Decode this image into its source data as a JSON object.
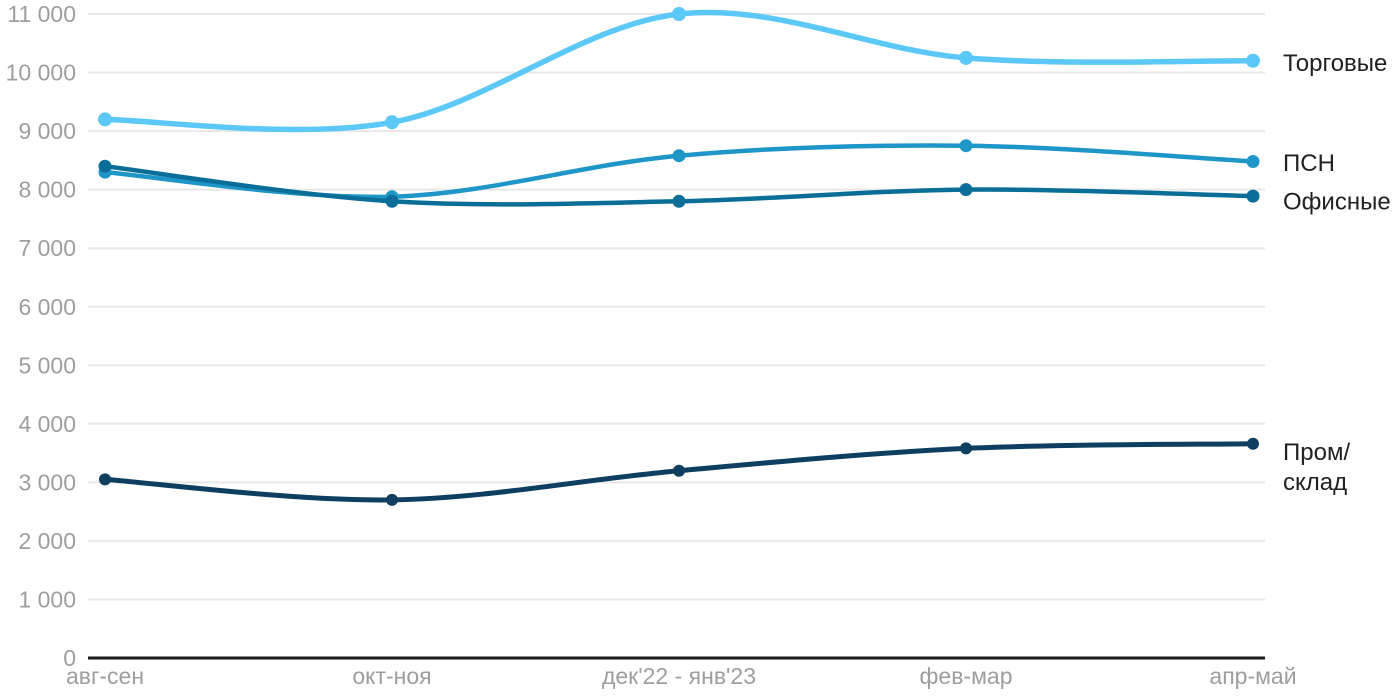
{
  "chart_data": {
    "type": "line",
    "title": "",
    "xlabel": "",
    "ylabel": "",
    "categories": [
      "авг-сен",
      "окт-ноя",
      "дек'22 - янв'23",
      "фев-мар",
      "апр-май"
    ],
    "series": [
      {
        "name": "Торговые",
        "label_lines": [
          "Торговые"
        ],
        "color": "#5BC8F7",
        "values": [
          9200,
          9150,
          11000,
          10250,
          10200
        ]
      },
      {
        "name": "ПСН",
        "label_lines": [
          "ПСН"
        ],
        "color": "#1E96C8",
        "values": [
          8300,
          7880,
          8580,
          8750,
          8480
        ]
      },
      {
        "name": "Офисные",
        "label_lines": [
          "Офисные"
        ],
        "color": "#0B6E99",
        "values": [
          8400,
          7800,
          7800,
          8000,
          7890
        ]
      },
      {
        "name": "Пром/склад",
        "label_lines": [
          "Пром/",
          "склад"
        ],
        "color": "#0E3E60",
        "values": [
          3050,
          2700,
          3200,
          3580,
          3660
        ]
      }
    ],
    "y_ticks": [
      {
        "value": 0,
        "label": "0"
      },
      {
        "value": 1000,
        "label": "1 000"
      },
      {
        "value": 2000,
        "label": "2 000"
      },
      {
        "value": 3000,
        "label": "3 000"
      },
      {
        "value": 4000,
        "label": "4 000"
      },
      {
        "value": 5000,
        "label": "5 000"
      },
      {
        "value": 6000,
        "label": "6 000"
      },
      {
        "value": 7000,
        "label": "7 000"
      },
      {
        "value": 8000,
        "label": "8 000"
      },
      {
        "value": 9000,
        "label": "9 000"
      },
      {
        "value": 10000,
        "label": "10 000"
      },
      {
        "value": 11000,
        "label": "11 000"
      }
    ],
    "ylim": [
      0,
      11000
    ],
    "grid": true,
    "legend_position": "right-end-of-lines",
    "colors": {
      "gridline": "#E8E8E8",
      "axis_line": "#1A1A1A",
      "tick_label": "#9E9E9E",
      "series_label": "#212121",
      "background": "#FFFFFF"
    }
  }
}
